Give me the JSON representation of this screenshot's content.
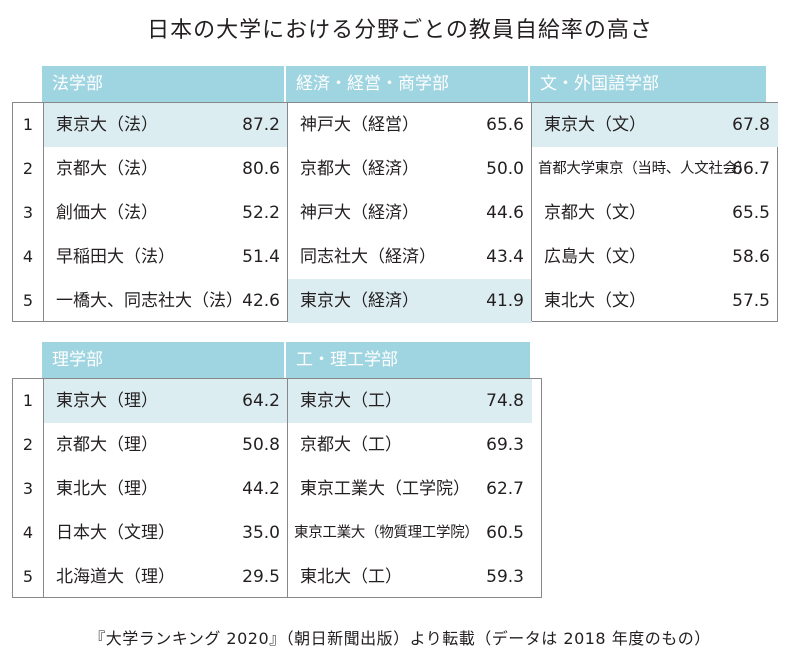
{
  "title": "日本の大学における分野ごとの教員自給率の高さ",
  "ranks": [
    "1",
    "2",
    "3",
    "4",
    "5"
  ],
  "table1": {
    "columns": [
      {
        "header": "法学部",
        "rows": [
          {
            "univ": "東京大（法）",
            "value": "87.2",
            "highlight": true
          },
          {
            "univ": "京都大（法）",
            "value": "80.6",
            "highlight": false
          },
          {
            "univ": "創価大（法）",
            "value": "52.2",
            "highlight": false
          },
          {
            "univ": "早稲田大（法）",
            "value": "51.4",
            "highlight": false
          },
          {
            "univ": "一橋大、同志社大（法）",
            "value": "42.6",
            "highlight": false
          }
        ]
      },
      {
        "header": "経済・経営・商学部",
        "rows": [
          {
            "univ": "神戸大（経営）",
            "value": "65.6",
            "highlight": false
          },
          {
            "univ": "京都大（経済）",
            "value": "50.0",
            "highlight": false
          },
          {
            "univ": "神戸大（経済）",
            "value": "44.6",
            "highlight": false
          },
          {
            "univ": "同志社大（経済）",
            "value": "43.4",
            "highlight": false
          },
          {
            "univ": "東京大（経済）",
            "value": "41.9",
            "highlight": true
          }
        ]
      },
      {
        "header": "文・外国語学部",
        "rows": [
          {
            "univ": "東京大（文）",
            "value": "67.8",
            "highlight": true
          },
          {
            "univ": "首都大学東京（当時、人文社会）",
            "value": "66.7",
            "highlight": false
          },
          {
            "univ": "京都大（文）",
            "value": "65.5",
            "highlight": false
          },
          {
            "univ": "広島大（文）",
            "value": "58.6",
            "highlight": false
          },
          {
            "univ": "東北大（文）",
            "value": "57.5",
            "highlight": false
          }
        ]
      }
    ]
  },
  "table2": {
    "columns": [
      {
        "header": "理学部",
        "rows": [
          {
            "univ": "東京大（理）",
            "value": "64.2",
            "highlight": true
          },
          {
            "univ": "京都大（理）",
            "value": "50.8",
            "highlight": false
          },
          {
            "univ": "東北大（理）",
            "value": "44.2",
            "highlight": false
          },
          {
            "univ": "日本大（文理）",
            "value": "35.0",
            "highlight": false
          },
          {
            "univ": "北海道大（理）",
            "value": "29.5",
            "highlight": false
          }
        ]
      },
      {
        "header": "工・理工学部",
        "rows": [
          {
            "univ": "東京大（工）",
            "value": "74.8",
            "highlight": true
          },
          {
            "univ": "京都大（工）",
            "value": "69.3",
            "highlight": false
          },
          {
            "univ": "東京工業大（工学院）",
            "value": "62.7",
            "highlight": false
          },
          {
            "univ": "東京工業大（物質理工学院）",
            "value": "60.5",
            "highlight": false
          },
          {
            "univ": "東北大（工）",
            "value": "59.3",
            "highlight": false
          }
        ]
      }
    ]
  },
  "footer": "『大学ランキング 2020』（朝日新聞出版）より転載（データは 2018 年度のもの）",
  "colors": {
    "header_bg": "#9fd4e1",
    "highlight_bg": "#dcedf2"
  }
}
